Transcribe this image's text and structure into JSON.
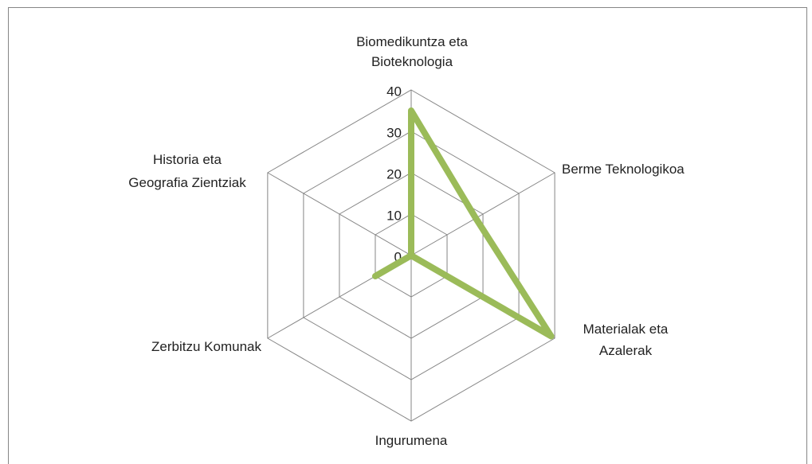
{
  "chart_data": {
    "type": "radar",
    "categories": [
      "Biomedikuntza eta Bioteknologia",
      "Berme Teknologikoa",
      "Materialak eta Azalerak",
      "Ingurumena",
      "Zerbitzu Komunak",
      "Historia eta Geografia Zientziak"
    ],
    "values": [
      35,
      18,
      39,
      0,
      10,
      0
    ],
    "color": "#9bbb59",
    "ylim": [
      0,
      40
    ],
    "yticks": [
      0,
      10,
      20,
      30,
      40
    ],
    "grid": true
  }
}
